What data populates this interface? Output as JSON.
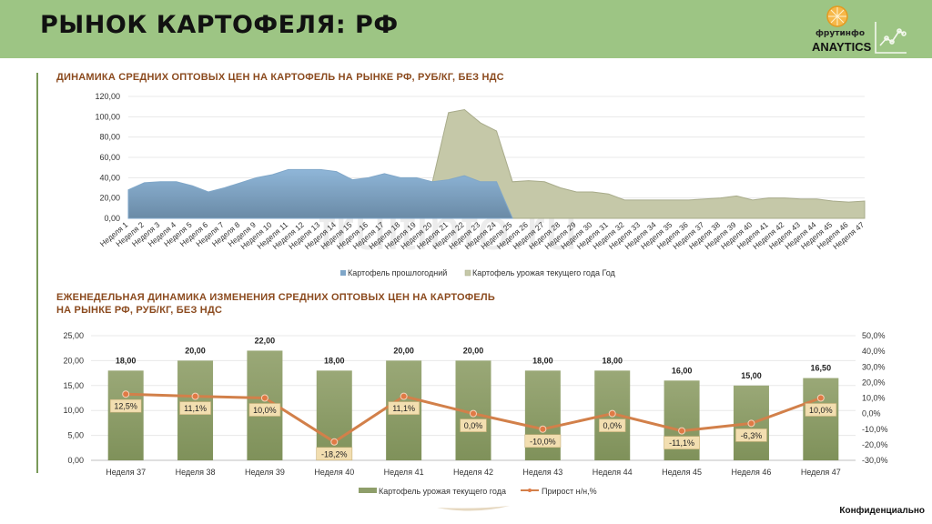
{
  "header": {
    "title": "РЫНОК КАРТОФЕЛЯ: РФ",
    "logo_name": "фрутинфо",
    "logo_sub": "ANAYTICS",
    "bg_color": "#9dc584"
  },
  "watermark": "fruitinfo.ru",
  "footer": {
    "confidential": "Конфиденциально"
  },
  "colors": {
    "title_brown": "#8b4a1e",
    "area_last_year": "#7fa6c8",
    "area_current": "#c5c8a8",
    "bar_green": "#8e9e6a",
    "line_orange": "#d2804a",
    "label_box": "#f2deb0"
  },
  "chart_data": [
    {
      "type": "area",
      "title": "ДИНАМИКА СРЕДНИХ ОПТОВЫХ ЦЕН НА КАРТОФЕЛЬ НА РЫНКЕ РФ, РУБ/КГ, БЕЗ НДС",
      "xlabel": "",
      "ylabel": "",
      "ylim": [
        0,
        120
      ],
      "yticks": [
        "0,00",
        "20,00",
        "40,00",
        "60,00",
        "80,00",
        "100,00",
        "120,00"
      ],
      "grid": true,
      "legend": "bottom",
      "categories": [
        "Неделя 1",
        "Неделя 2",
        "Неделя 3",
        "Неделя 4",
        "Неделя 5",
        "Неделя 6",
        "Неделя 7",
        "Неделя 8",
        "Неделя 9",
        "Неделя 10",
        "Неделя 11",
        "Неделя 12",
        "Неделя 13",
        "Неделя 14",
        "Неделя 15",
        "Неделя 16",
        "Неделя 17",
        "Неделя 18",
        "Неделя 19",
        "Неделя 20",
        "Неделя 21",
        "Неделя 22",
        "Неделя 23",
        "Неделя 24",
        "Неделя 25",
        "Неделя 26",
        "Неделя 27",
        "Неделя 28",
        "Неделя 29",
        "Неделя 30",
        "Неделя 31",
        "Неделя 32",
        "Неделя 33",
        "Неделя 34",
        "Неделя 35",
        "Неделя 36",
        "Неделя 37",
        "Неделя 38",
        "Неделя 39",
        "Неделя 40",
        "Неделя 41",
        "Неделя 42",
        "Неделя 43",
        "Неделя 44",
        "Неделя 45",
        "Неделя 46",
        "Неделя 47"
      ],
      "series": [
        {
          "name": "Картофель прошлогодний",
          "values": [
            28,
            35,
            36,
            36,
            32,
            26,
            30,
            35,
            40,
            43,
            48,
            48,
            48,
            46,
            38,
            40,
            44,
            40,
            40,
            36,
            38,
            42,
            36,
            36,
            0,
            null,
            null,
            null,
            null,
            null,
            null,
            null,
            null,
            null,
            null,
            null,
            null,
            null,
            null,
            null,
            null,
            null,
            null,
            null,
            null,
            null,
            null
          ]
        },
        {
          "name": "Картофель урожая текущего года Год",
          "values": [
            null,
            null,
            null,
            null,
            null,
            null,
            null,
            null,
            null,
            null,
            null,
            null,
            null,
            null,
            null,
            null,
            null,
            null,
            null,
            36,
            104,
            107,
            94,
            86,
            36,
            37,
            36,
            30,
            26,
            26,
            24,
            18,
            18,
            18,
            18,
            18,
            19,
            20,
            22,
            18,
            20,
            20,
            19,
            19,
            17,
            16,
            17
          ]
        }
      ]
    },
    {
      "type": "bar",
      "title": "ЕЖЕНЕДЕЛЬНАЯ ДИНАМИКА ИЗМЕНЕНИЯ  СРЕДНИХ ОПТОВЫХ ЦЕН НА КАРТОФЕЛЬ НА РЫНКЕ РФ, РУБ/КГ, БЕЗ НДС",
      "title_lines": [
        "ЕЖЕНЕДЕЛЬНАЯ ДИНАМИКА ИЗМЕНЕНИЯ  СРЕДНИХ ОПТОВЫХ ЦЕН НА КАРТОФЕЛЬ",
        "НА РЫНКЕ РФ, РУБ/КГ, БЕЗ НДС"
      ],
      "xlabel": "",
      "ylabel": "",
      "ylim": [
        0,
        25
      ],
      "y2lim": [
        -30,
        50
      ],
      "yticks": [
        "0,00",
        "5,00",
        "10,00",
        "15,00",
        "20,00",
        "25,00"
      ],
      "y2ticks": [
        "-30,0%",
        "-20,0%",
        "-10,0%",
        "0,0%",
        "10,0%",
        "20,0%",
        "30,0%",
        "40,0%",
        "50,0%"
      ],
      "grid": true,
      "legend": "bottom",
      "categories": [
        "Неделя 37",
        "Неделя 38",
        "Неделя 39",
        "Неделя 40",
        "Неделя 41",
        "Неделя 42",
        "Неделя 43",
        "Неделя 44",
        "Неделя 45",
        "Неделя 46",
        "Неделя 47"
      ],
      "series": [
        {
          "name": "Картофель урожая текущего года",
          "type": "bar",
          "axis": "left",
          "values": [
            18,
            20,
            22,
            18,
            20,
            20,
            18,
            18,
            16,
            15,
            16.5
          ],
          "labels": [
            "18,00",
            "20,00",
            "22,00",
            "18,00",
            "20,00",
            "20,00",
            "18,00",
            "18,00",
            "16,00",
            "15,00",
            "16,50"
          ]
        },
        {
          "name": "Прирост н/н,%",
          "type": "line",
          "axis": "right",
          "values": [
            12.5,
            11.1,
            10.0,
            -18.2,
            11.1,
            0.0,
            -10.0,
            0.0,
            -11.1,
            -6.3,
            10.0
          ],
          "labels": [
            "12,5%",
            "11,1%",
            "10,0%",
            "-18,2%",
            "11,1%",
            "0,0%",
            "-10,0%",
            "0,0%",
            "-11,1%",
            "-6,3%",
            "10,0%"
          ]
        }
      ]
    }
  ]
}
